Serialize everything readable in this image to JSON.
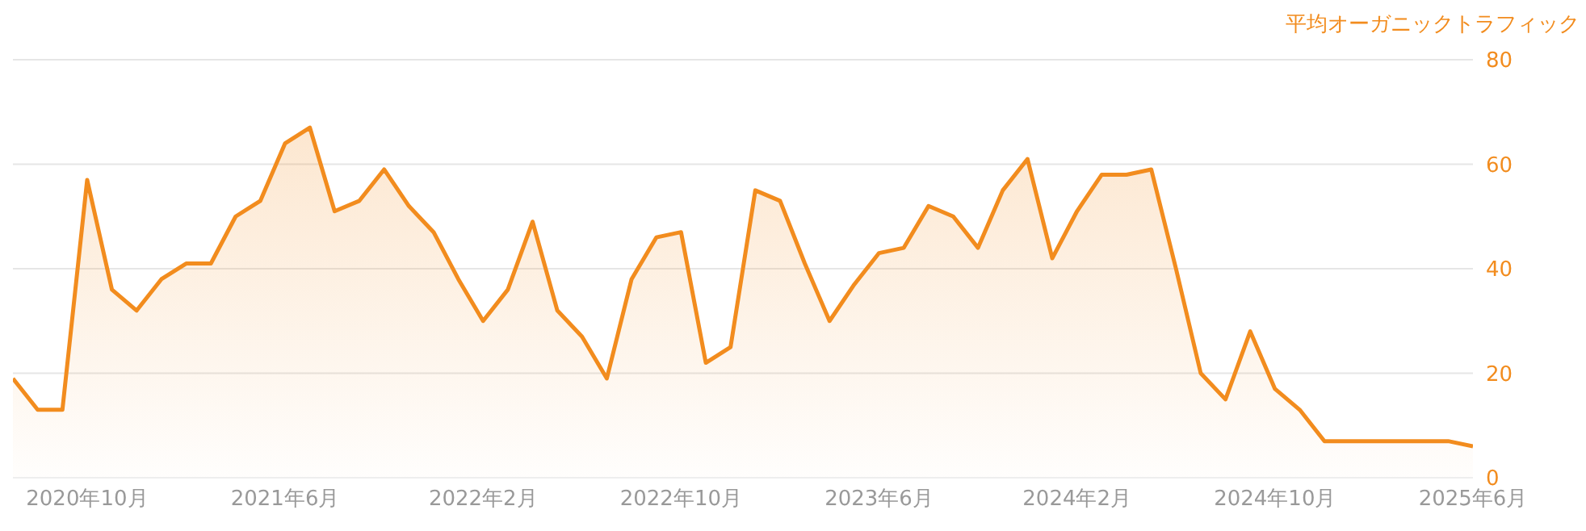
{
  "chart_data": {
    "type": "area",
    "ylabel": "平均オーガニックトラフィック",
    "x": [
      "2020-07",
      "2020-08",
      "2020-09",
      "2020-10",
      "2020-11",
      "2020-12",
      "2021-01",
      "2021-02",
      "2021-03",
      "2021-04",
      "2021-05",
      "2021-06",
      "2021-07",
      "2021-08",
      "2021-09",
      "2021-10",
      "2021-11",
      "2021-12",
      "2022-01",
      "2022-02",
      "2022-03",
      "2022-04",
      "2022-05",
      "2022-06",
      "2022-07",
      "2022-08",
      "2022-09",
      "2022-10",
      "2022-11",
      "2022-12",
      "2023-01",
      "2023-02",
      "2023-03",
      "2023-04",
      "2023-05",
      "2023-06",
      "2023-07",
      "2023-08",
      "2023-09",
      "2023-10",
      "2023-11",
      "2023-12",
      "2024-01",
      "2024-02",
      "2024-03",
      "2024-04",
      "2024-05",
      "2024-06",
      "2024-07",
      "2024-08",
      "2024-09",
      "2024-10",
      "2024-11",
      "2024-12",
      "2025-01",
      "2025-02",
      "2025-03",
      "2025-04",
      "2025-05",
      "2025-06"
    ],
    "series": [
      {
        "color": "#f28c1e",
        "values": [
          19,
          13,
          13,
          57,
          36,
          32,
          38,
          41,
          41,
          50,
          53,
          64,
          67,
          51,
          53,
          59,
          52,
          47,
          38,
          30,
          36,
          49,
          32,
          27,
          19,
          38,
          46,
          47,
          22,
          25,
          55,
          53,
          41,
          30,
          37,
          43,
          44,
          52,
          50,
          44,
          55,
          61,
          42,
          51,
          58,
          58,
          59,
          40,
          20,
          15,
          28,
          17,
          13,
          7,
          7,
          7,
          7,
          7,
          7,
          6
        ]
      }
    ],
    "xlim": [
      "2020-07",
      "2025-06"
    ],
    "xticks": [
      {
        "value": "2020-10",
        "label": "2020年10月"
      },
      {
        "value": "2021-06",
        "label": "2021年6月"
      },
      {
        "value": "2022-02",
        "label": "2022年2月"
      },
      {
        "value": "2022-10",
        "label": "2022年10月"
      },
      {
        "value": "2023-06",
        "label": "2023年6月"
      },
      {
        "value": "2024-02",
        "label": "2024年2月"
      },
      {
        "value": "2024-10",
        "label": "2024年10月"
      },
      {
        "value": "2025-06",
        "label": "2025年6月"
      }
    ],
    "ylim": [
      0,
      80
    ],
    "yticks": [
      0,
      20,
      40,
      60,
      80
    ],
    "grid": "y"
  }
}
